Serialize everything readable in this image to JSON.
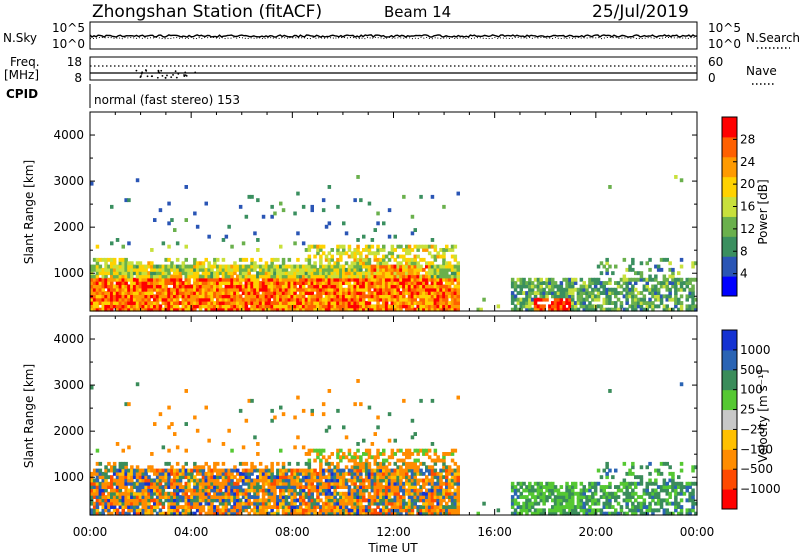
{
  "header": {
    "station_title": "Zhongshan Station (fitACF)",
    "beam": "Beam 14",
    "date": "25/Jul/2019"
  },
  "top_panels": {
    "nsky_label": "N.Sky",
    "nsky_ticks": [
      "10^5",
      "10^0"
    ],
    "nsearch_label": "N.Search",
    "nsearch_ticks": [
      "10^5",
      "10^0"
    ],
    "freq_label": "Freq.",
    "freq_unit": "[MHz]",
    "freq_ticks": [
      "18",
      "8"
    ],
    "nave_label": "Nave",
    "nave_ticks": [
      "60",
      "0"
    ],
    "cpid_label": "CPID",
    "cpid_text": "normal (fast stereo) 153"
  },
  "colors": {
    "power": [
      "#0000ff",
      "#2a55b5",
      "#3a8f5f",
      "#6ab04c",
      "#c8e03c",
      "#ffd200",
      "#ff9a00",
      "#ff6000",
      "#ff0000"
    ],
    "velocity": [
      "#ff0000",
      "#ff4a00",
      "#ff8c00",
      "#ffc000",
      "#c8c8c8",
      "#55c832",
      "#3a8c5a",
      "#2a64b4",
      "#1432d2"
    ]
  },
  "chart_data": [
    {
      "type": "heatmap",
      "quantity": "Power",
      "ylabel": "Slant Range [km]",
      "yticks": [
        "4000",
        "3000",
        "2000",
        "1000"
      ],
      "ylim": [
        180,
        4500
      ],
      "xlim_hours": [
        0,
        24
      ],
      "colorbar": {
        "label": "Power [dB]",
        "ticks": [
          "28",
          "24",
          "20",
          "16",
          "12",
          "8",
          "4"
        ],
        "range": [
          0,
          32
        ]
      }
    },
    {
      "type": "heatmap",
      "quantity": "Velocity",
      "ylabel": "Slant Range [km]",
      "yticks": [
        "4000",
        "3000",
        "2000",
        "1000"
      ],
      "ylim": [
        180,
        4500
      ],
      "xlim_hours": [
        0,
        24
      ],
      "colorbar": {
        "label": "Velocity [m s⁻¹]",
        "ticks": [
          "1000",
          "500",
          "100",
          "25",
          "−25",
          "−100",
          "−500",
          "−1000"
        ]
      }
    }
  ],
  "xaxis": {
    "label": "Time UT",
    "ticks": [
      "00:00",
      "04:00",
      "08:00",
      "12:00",
      "16:00",
      "20:00",
      "00:00"
    ]
  }
}
